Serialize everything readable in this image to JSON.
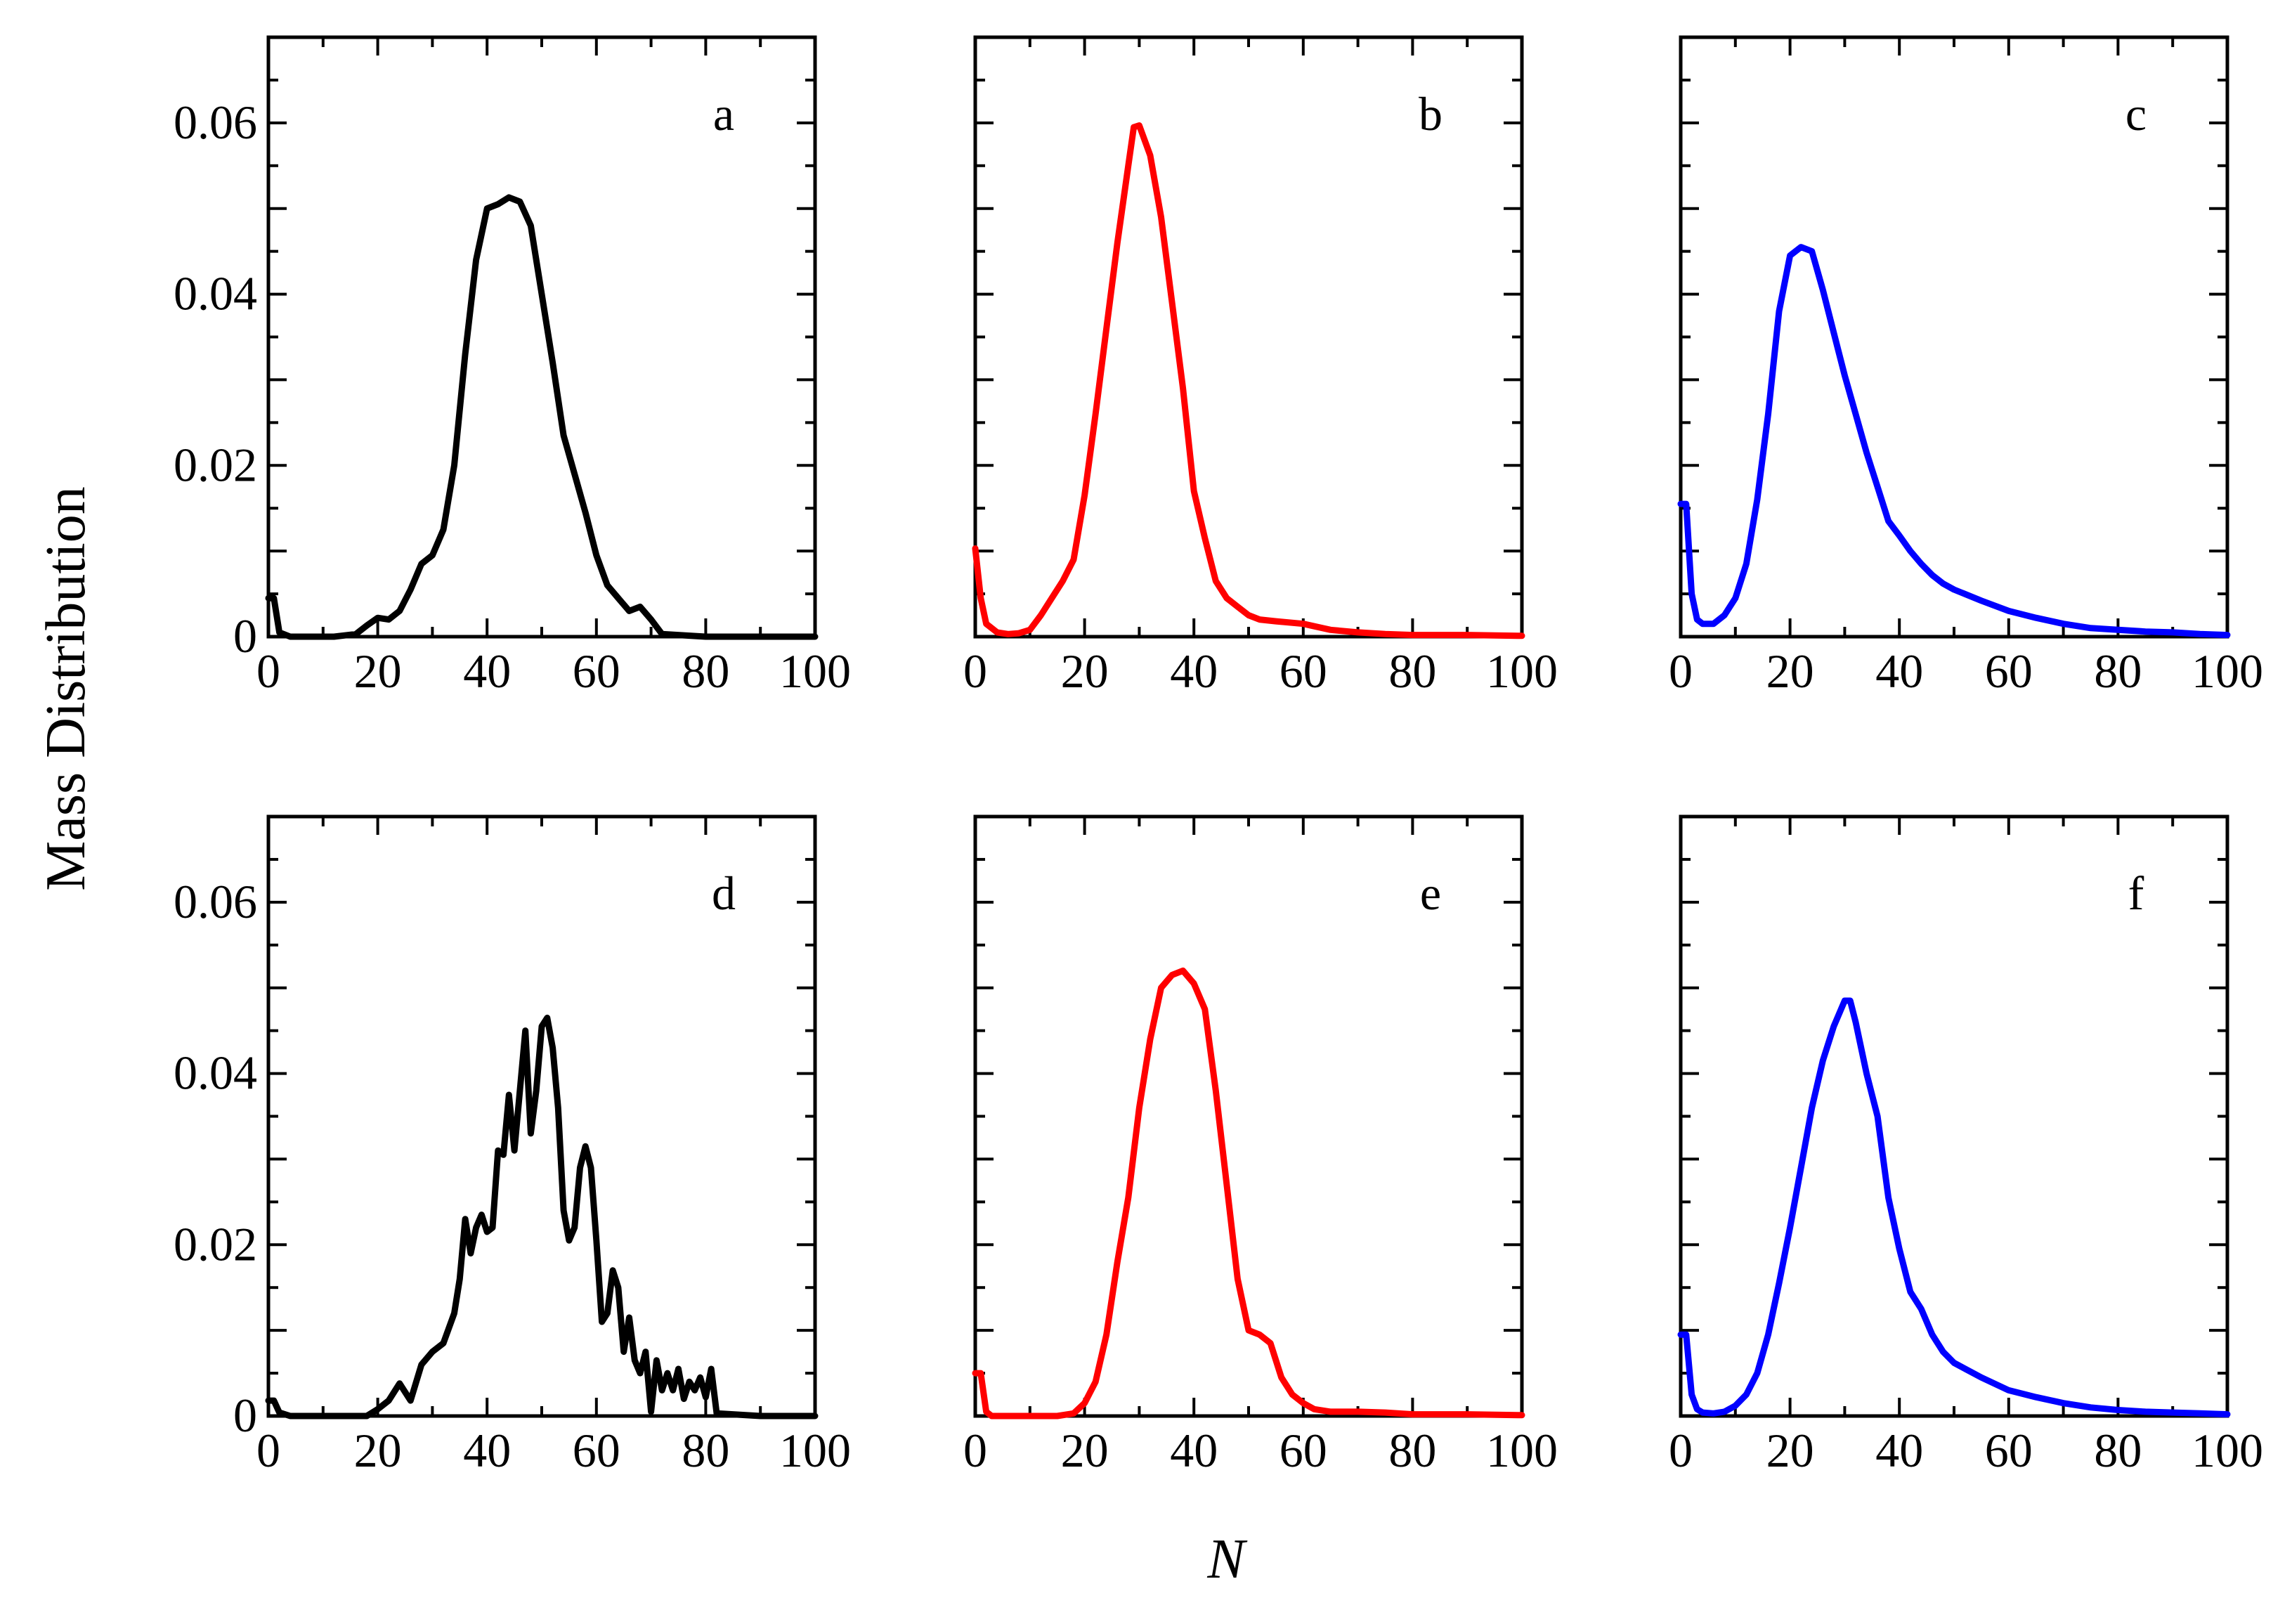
{
  "chart_data": {
    "xlabel": "N",
    "ylabel": "Mass Distribution",
    "x_ticks": [
      "0",
      "20",
      "40",
      "60",
      "80",
      "100"
    ],
    "y_ticks": [
      "0",
      "0.02",
      "0.04",
      "0.06"
    ],
    "panels": [
      {
        "type": "line",
        "label": "a",
        "xlim": [
          0,
          100
        ],
        "ylim": [
          0,
          0.07
        ],
        "color": "#000000",
        "x": [
          0,
          1,
          2,
          4,
          8,
          12,
          16,
          18,
          20,
          22,
          24,
          26,
          28,
          30,
          32,
          34,
          36,
          38,
          40,
          42,
          44,
          46,
          48,
          50,
          52,
          54,
          56,
          58,
          60,
          62,
          64,
          66,
          68,
          70,
          72,
          80,
          100
        ],
        "y": [
          0.0045,
          0.0045,
          0.0005,
          0,
          0,
          0,
          0.0003,
          0.0013,
          0.0022,
          0.002,
          0.003,
          0.0055,
          0.0085,
          0.0095,
          0.0125,
          0.02,
          0.033,
          0.044,
          0.05,
          0.0505,
          0.0513,
          0.0508,
          0.048,
          0.04,
          0.032,
          0.0235,
          0.019,
          0.0145,
          0.0095,
          0.006,
          0.0045,
          0.003,
          0.0035,
          0.002,
          0.0003,
          0,
          0
        ]
      },
      {
        "type": "line",
        "label": "b",
        "xlim": [
          0,
          100
        ],
        "ylim": [
          0,
          0.07
        ],
        "color": "#ff0000",
        "x": [
          0,
          1,
          2,
          4,
          6,
          8,
          10,
          12,
          14,
          16,
          18,
          20,
          22,
          24,
          26,
          28,
          29,
          30,
          32,
          34,
          36,
          38,
          40,
          42,
          44,
          46,
          48,
          50,
          52,
          55,
          60,
          65,
          70,
          75,
          80,
          90,
          100
        ],
        "y": [
          0.0103,
          0.0045,
          0.0015,
          0.0005,
          0.0003,
          0.0004,
          0.0008,
          0.0025,
          0.0045,
          0.0065,
          0.009,
          0.0165,
          0.026,
          0.036,
          0.046,
          0.055,
          0.0595,
          0.0597,
          0.0562,
          0.049,
          0.039,
          0.029,
          0.017,
          0.0115,
          0.0065,
          0.0045,
          0.0035,
          0.0025,
          0.002,
          0.0018,
          0.0015,
          0.0008,
          0.0005,
          0.0003,
          0.0002,
          0.0002,
          0.0001
        ]
      },
      {
        "type": "line",
        "label": "c",
        "xlim": [
          0,
          100
        ],
        "ylim": [
          0,
          0.07
        ],
        "color": "#0000ff",
        "x": [
          0,
          1,
          2,
          3,
          4,
          6,
          8,
          10,
          12,
          14,
          16,
          18,
          20,
          22,
          24,
          26,
          28,
          30,
          32,
          34,
          36,
          38,
          40,
          42,
          44,
          46,
          48,
          50,
          55,
          60,
          65,
          70,
          75,
          80,
          85,
          90,
          95,
          100
        ],
        "y": [
          0.0155,
          0.0155,
          0.005,
          0.002,
          0.0015,
          0.0015,
          0.0025,
          0.0045,
          0.0085,
          0.016,
          0.026,
          0.038,
          0.0445,
          0.0455,
          0.045,
          0.0405,
          0.0355,
          0.0305,
          0.026,
          0.0215,
          0.0175,
          0.0135,
          0.0118,
          0.01,
          0.0085,
          0.0072,
          0.0062,
          0.0055,
          0.0042,
          0.003,
          0.0022,
          0.0015,
          0.001,
          0.0008,
          0.0006,
          0.0005,
          0.0003,
          0.0002
        ]
      },
      {
        "type": "line",
        "label": "d",
        "xlim": [
          0,
          100
        ],
        "ylim": [
          0,
          0.07
        ],
        "color": "#000000",
        "x": [
          0,
          1,
          2,
          4,
          10,
          18,
          20,
          22,
          24,
          26,
          28,
          30,
          32,
          34,
          35,
          36,
          37,
          38,
          39,
          40,
          41,
          42,
          43,
          44,
          45,
          46,
          47,
          48,
          49,
          50,
          51,
          52,
          53,
          54,
          55,
          56,
          57,
          58,
          59,
          60,
          61,
          62,
          63,
          64,
          65,
          66,
          67,
          68,
          69,
          70,
          71,
          72,
          73,
          74,
          75,
          76,
          77,
          78,
          79,
          80,
          81,
          82,
          90,
          100
        ],
        "y": [
          0.0018,
          0.0018,
          0.0004,
          0,
          0,
          0,
          0.0008,
          0.0018,
          0.0038,
          0.0018,
          0.006,
          0.0075,
          0.0085,
          0.012,
          0.016,
          0.023,
          0.019,
          0.022,
          0.0235,
          0.0215,
          0.022,
          0.031,
          0.0305,
          0.0375,
          0.031,
          0.038,
          0.045,
          0.033,
          0.038,
          0.0455,
          0.0465,
          0.043,
          0.036,
          0.024,
          0.0205,
          0.022,
          0.029,
          0.0315,
          0.029,
          0.0205,
          0.011,
          0.012,
          0.017,
          0.015,
          0.0075,
          0.0115,
          0.0065,
          0.005,
          0.0075,
          0.0005,
          0.0065,
          0.003,
          0.005,
          0.003,
          0.0055,
          0.002,
          0.004,
          0.003,
          0.0045,
          0.0022,
          0.0055,
          0.0003,
          0,
          0
        ]
      },
      {
        "type": "line",
        "label": "e",
        "xlim": [
          0,
          100
        ],
        "ylim": [
          0,
          0.07
        ],
        "color": "#ff0000",
        "x": [
          0,
          1,
          2,
          3,
          5,
          10,
          15,
          18,
          20,
          22,
          24,
          26,
          28,
          30,
          32,
          34,
          36,
          38,
          40,
          42,
          44,
          46,
          48,
          50,
          52,
          54,
          56,
          58,
          60,
          62,
          65,
          70,
          75,
          80,
          90,
          100
        ],
        "y": [
          0.005,
          0.005,
          0.0005,
          0,
          0,
          0,
          0,
          0.0003,
          0.0015,
          0.004,
          0.0095,
          0.018,
          0.0255,
          0.036,
          0.044,
          0.05,
          0.0515,
          0.052,
          0.0505,
          0.0475,
          0.038,
          0.027,
          0.016,
          0.01,
          0.0095,
          0.0085,
          0.0045,
          0.0025,
          0.0015,
          0.0008,
          0.0005,
          0.0005,
          0.0004,
          0.0002,
          0.0002,
          0.0001
        ]
      },
      {
        "type": "line",
        "label": "f",
        "xlim": [
          0,
          100
        ],
        "ylim": [
          0,
          0.07
        ],
        "color": "#0000ff",
        "x": [
          0,
          1,
          2,
          3,
          4,
          6,
          8,
          10,
          12,
          14,
          16,
          18,
          20,
          22,
          24,
          26,
          28,
          30,
          31,
          32,
          34,
          36,
          38,
          40,
          42,
          44,
          46,
          48,
          50,
          55,
          60,
          65,
          70,
          75,
          80,
          85,
          90,
          95,
          100
        ],
        "y": [
          0.0095,
          0.0095,
          0.0025,
          0.0008,
          0.0004,
          0.0003,
          0.0005,
          0.0012,
          0.0025,
          0.005,
          0.0095,
          0.0155,
          0.022,
          0.029,
          0.036,
          0.0415,
          0.0455,
          0.0485,
          0.0485,
          0.046,
          0.04,
          0.035,
          0.0255,
          0.0195,
          0.0145,
          0.0125,
          0.0095,
          0.0075,
          0.0062,
          0.0045,
          0.003,
          0.0022,
          0.0015,
          0.001,
          0.0007,
          0.0005,
          0.0004,
          0.0003,
          0.0002
        ]
      }
    ]
  }
}
